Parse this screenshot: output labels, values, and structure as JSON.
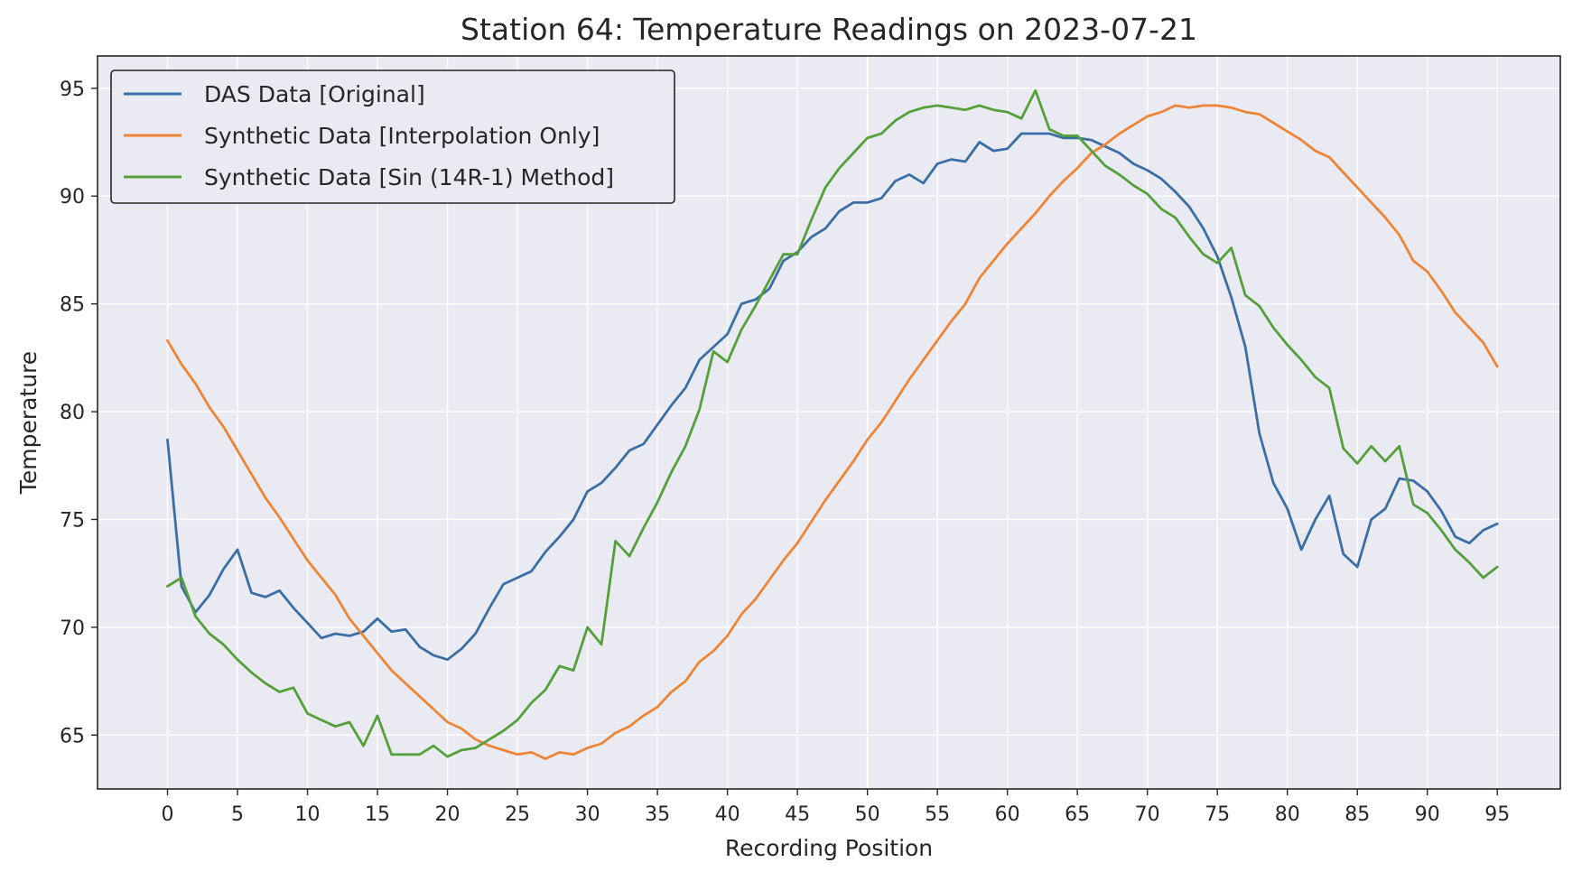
{
  "chart_data": {
    "type": "line",
    "title": "Station 64: Temperature Readings on 2023-07-21",
    "xlabel": "Recording Position",
    "ylabel": "Temperature",
    "xlim": [
      -5,
      99.5
    ],
    "ylim": [
      62.5,
      96.5
    ],
    "xticks": [
      0,
      5,
      10,
      15,
      20,
      25,
      30,
      35,
      40,
      45,
      50,
      55,
      60,
      65,
      70,
      75,
      80,
      85,
      90,
      95
    ],
    "yticks": [
      65,
      70,
      75,
      80,
      85,
      90,
      95
    ],
    "grid": true,
    "legend_position": "upper-left",
    "series": [
      {
        "name": "DAS Data [Original]",
        "color": "#3b6ea5",
        "x": [
          0,
          1,
          2,
          3,
          4,
          5,
          6,
          7,
          8,
          9,
          10,
          11,
          12,
          13,
          14,
          15,
          16,
          17,
          18,
          19,
          20,
          21,
          22,
          23,
          24,
          25,
          26,
          27,
          28,
          29,
          30,
          31,
          32,
          33,
          34,
          35,
          36,
          37,
          38,
          39,
          40,
          41,
          42,
          43,
          44,
          45,
          46,
          47,
          48,
          49,
          50,
          51,
          52,
          53,
          54,
          55,
          56,
          57,
          58,
          59,
          60,
          61,
          62,
          63,
          64,
          65,
          66,
          67,
          68,
          69,
          70,
          71,
          72,
          73,
          74,
          75,
          76,
          77,
          78,
          79,
          80,
          81,
          82,
          83,
          84,
          85,
          86,
          87,
          88,
          89,
          90,
          91,
          92,
          93,
          94,
          95
        ],
        "y": [
          78.7,
          71.9,
          70.7,
          71.5,
          72.7,
          73.6,
          71.6,
          71.4,
          71.7,
          70.9,
          70.2,
          69.5,
          69.7,
          69.6,
          69.8,
          70.4,
          69.8,
          69.9,
          69.1,
          68.7,
          68.5,
          69.0,
          69.7,
          70.9,
          72.0,
          72.3,
          72.6,
          73.5,
          74.2,
          75.0,
          76.3,
          76.7,
          77.4,
          78.2,
          78.5,
          79.4,
          80.3,
          81.1,
          82.4,
          83.0,
          83.6,
          85.0,
          85.2,
          85.7,
          87.0,
          87.4,
          88.1,
          88.5,
          89.3,
          89.7,
          89.7,
          89.9,
          90.7,
          91.0,
          90.6,
          91.5,
          91.7,
          91.6,
          92.5,
          92.1,
          92.2,
          92.9,
          92.9,
          92.9,
          92.7,
          92.7,
          92.6,
          92.3,
          92.0,
          91.5,
          91.2,
          90.8,
          90.2,
          89.5,
          88.5,
          87.2,
          85.3,
          83.0,
          79.0,
          76.7,
          75.5,
          73.6,
          75.0,
          76.1,
          73.4,
          72.8,
          75.0,
          75.5,
          76.9,
          76.8,
          76.3,
          75.4,
          74.2,
          73.9,
          74.5,
          74.8
        ]
      },
      {
        "name": "Synthetic Data [Interpolation Only]",
        "color": "#ee8536",
        "x": [
          0,
          1,
          2,
          3,
          4,
          5,
          6,
          7,
          8,
          9,
          10,
          11,
          12,
          13,
          14,
          15,
          16,
          17,
          18,
          19,
          20,
          21,
          22,
          23,
          24,
          25,
          26,
          27,
          28,
          29,
          30,
          31,
          32,
          33,
          34,
          35,
          36,
          37,
          38,
          39,
          40,
          41,
          42,
          43,
          44,
          45,
          46,
          47,
          48,
          49,
          50,
          51,
          52,
          53,
          54,
          55,
          56,
          57,
          58,
          59,
          60,
          61,
          62,
          63,
          64,
          65,
          66,
          67,
          68,
          69,
          70,
          71,
          72,
          73,
          74,
          75,
          76,
          77,
          78,
          79,
          80,
          81,
          82,
          83,
          84,
          85,
          86,
          87,
          88,
          89,
          90,
          91,
          92,
          93,
          94,
          95
        ],
        "y": [
          83.3,
          82.2,
          81.3,
          80.2,
          79.3,
          78.2,
          77.1,
          76.0,
          75.1,
          74.1,
          73.1,
          72.3,
          71.5,
          70.4,
          69.6,
          68.8,
          68.0,
          67.4,
          66.8,
          66.2,
          65.6,
          65.3,
          64.8,
          64.5,
          64.3,
          64.1,
          64.2,
          63.9,
          64.2,
          64.1,
          64.4,
          64.6,
          65.1,
          65.4,
          65.9,
          66.3,
          67.0,
          67.5,
          68.4,
          68.9,
          69.6,
          70.6,
          71.3,
          72.2,
          73.1,
          73.9,
          74.9,
          75.9,
          76.8,
          77.7,
          78.7,
          79.5,
          80.5,
          81.5,
          82.4,
          83.3,
          84.2,
          85.0,
          86.2,
          87.0,
          87.8,
          88.5,
          89.2,
          90.0,
          90.7,
          91.3,
          92.0,
          92.4,
          92.9,
          93.3,
          93.7,
          93.9,
          94.2,
          94.1,
          94.2,
          94.2,
          94.1,
          93.9,
          93.8,
          93.4,
          93.0,
          92.6,
          92.1,
          91.8,
          91.1,
          90.4,
          89.7,
          89.0,
          88.2,
          87.0,
          86.5,
          85.6,
          84.6,
          83.9,
          83.2,
          82.1
        ]
      },
      {
        "name": "Synthetic Data [Sin (14R-1) Method]",
        "color": "#55a03b",
        "x": [
          0,
          1,
          2,
          3,
          4,
          5,
          6,
          7,
          8,
          9,
          10,
          11,
          12,
          13,
          14,
          15,
          16,
          17,
          18,
          19,
          20,
          21,
          22,
          23,
          24,
          25,
          26,
          27,
          28,
          29,
          30,
          31,
          32,
          33,
          34,
          35,
          36,
          37,
          38,
          39,
          40,
          41,
          42,
          43,
          44,
          45,
          46,
          47,
          48,
          49,
          50,
          51,
          52,
          53,
          54,
          55,
          56,
          57,
          58,
          59,
          60,
          61,
          62,
          63,
          64,
          65,
          66,
          67,
          68,
          69,
          70,
          71,
          72,
          73,
          74,
          75,
          76,
          77,
          78,
          79,
          80,
          81,
          82,
          83,
          84,
          85,
          86,
          87,
          88,
          89,
          90,
          91,
          92,
          93,
          94,
          95
        ],
        "y": [
          71.9,
          72.3,
          70.5,
          69.7,
          69.2,
          68.5,
          67.9,
          67.4,
          67.0,
          67.2,
          66.0,
          65.7,
          65.4,
          65.6,
          64.5,
          65.9,
          64.1,
          64.1,
          64.1,
          64.5,
          64.0,
          64.3,
          64.4,
          64.8,
          65.2,
          65.7,
          66.5,
          67.1,
          68.2,
          68.0,
          70.0,
          69.2,
          74.0,
          73.3,
          74.6,
          75.8,
          77.2,
          78.4,
          80.1,
          82.8,
          82.3,
          83.8,
          84.9,
          86.1,
          87.3,
          87.3,
          88.9,
          90.4,
          91.3,
          92.0,
          92.7,
          92.9,
          93.5,
          93.9,
          94.1,
          94.2,
          94.1,
          94.0,
          94.2,
          94.0,
          93.9,
          93.6,
          94.9,
          93.1,
          92.8,
          92.8,
          92.1,
          91.4,
          91.0,
          90.5,
          90.1,
          89.4,
          89.0,
          88.1,
          87.3,
          86.9,
          87.6,
          85.4,
          84.9,
          83.9,
          83.1,
          82.4,
          81.6,
          81.1,
          78.3,
          77.6,
          78.4,
          77.7,
          78.4,
          75.7,
          75.3,
          74.5,
          73.6,
          73.0,
          72.3,
          72.8
        ]
      }
    ]
  }
}
